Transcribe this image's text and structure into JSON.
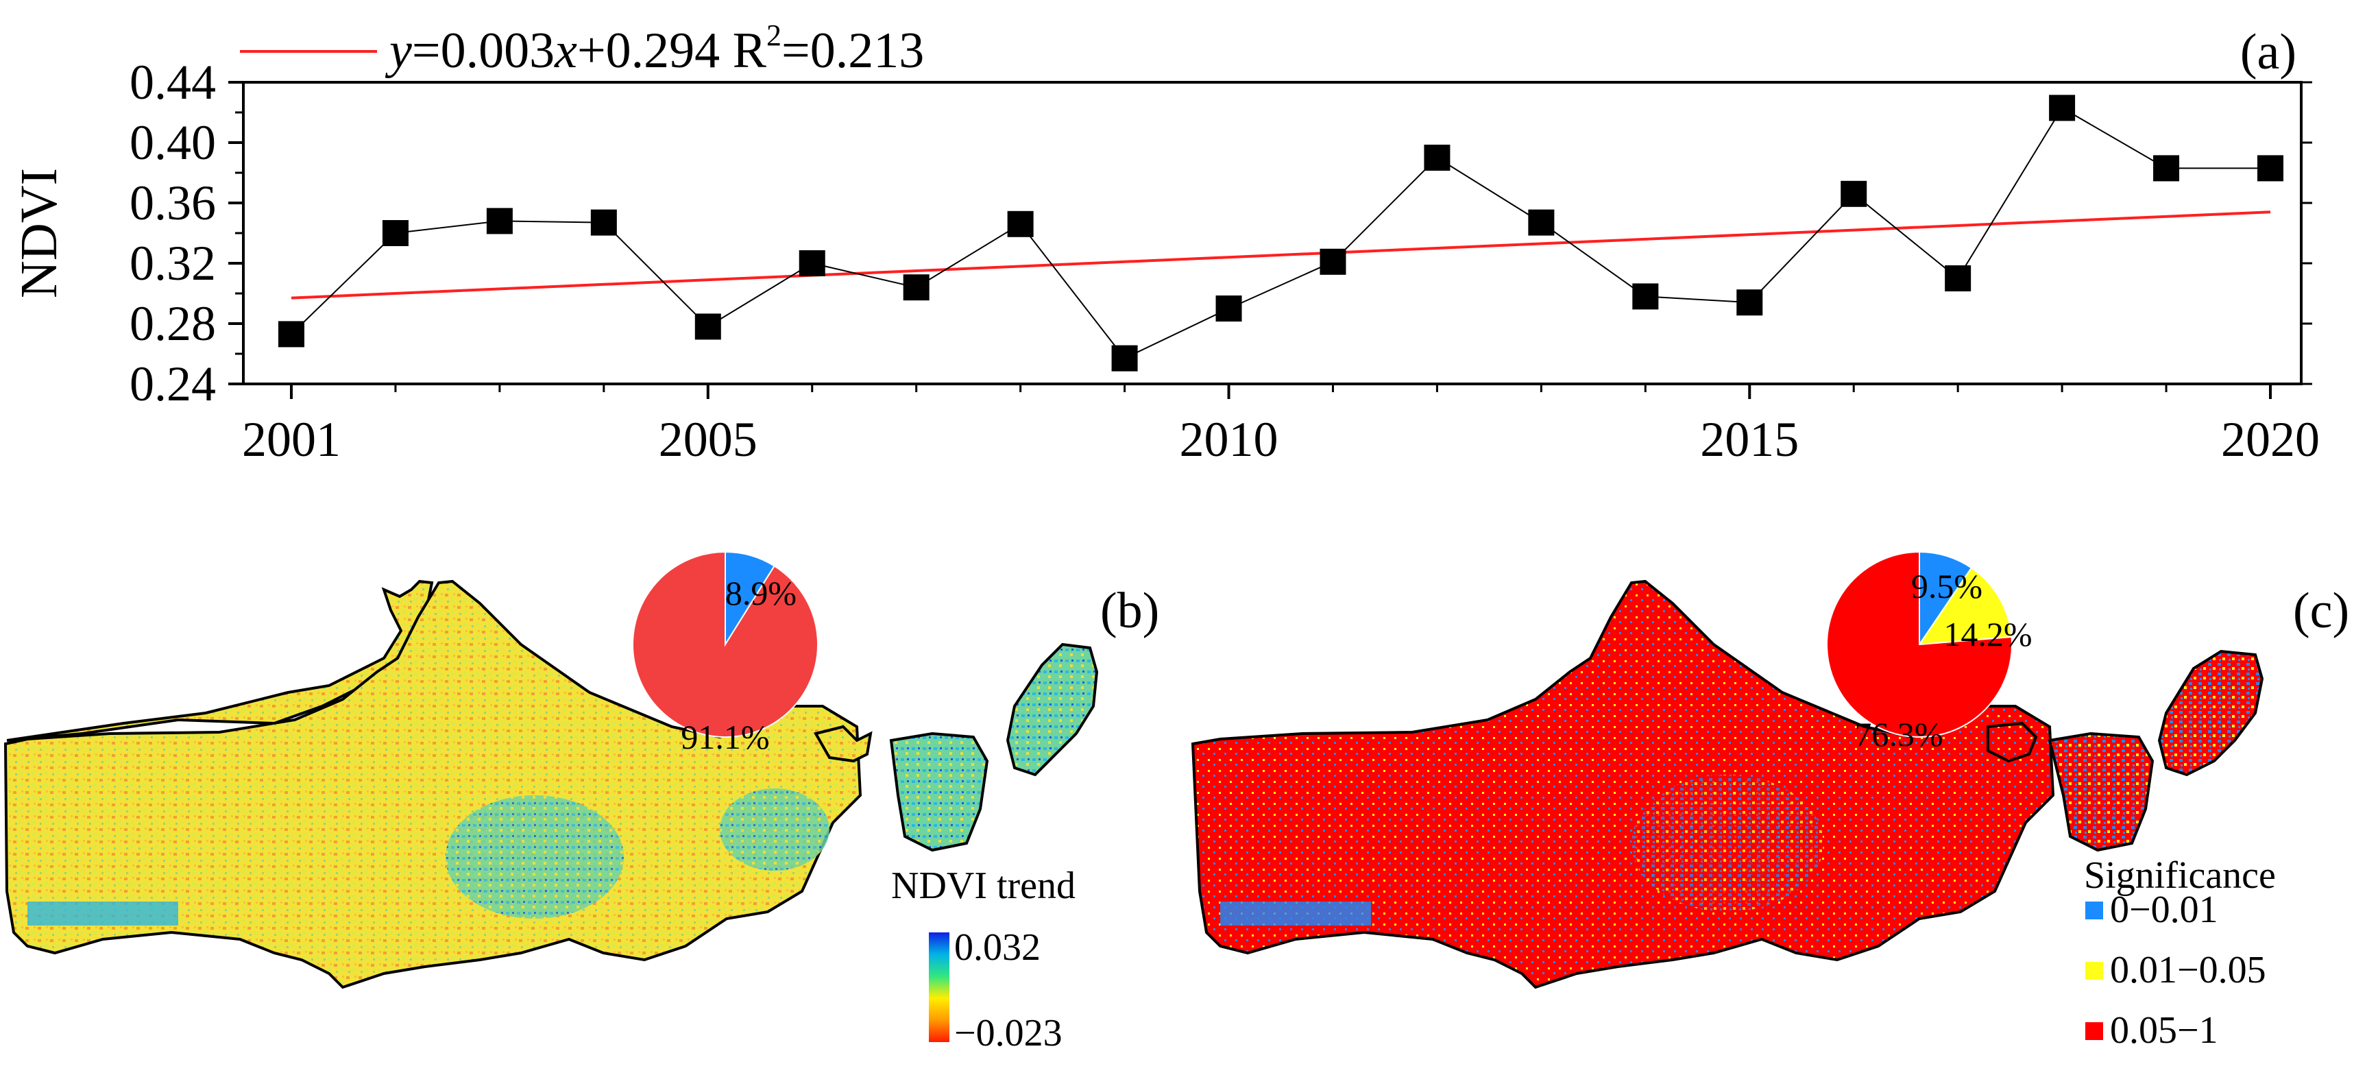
{
  "chart_data": [
    {
      "panel": "(a)",
      "type": "line",
      "ylabel": "NDVI",
      "xlabel": "",
      "x": [
        2001,
        2002,
        2003,
        2004,
        2005,
        2006,
        2007,
        2008,
        2009,
        2010,
        2011,
        2012,
        2013,
        2014,
        2015,
        2016,
        2017,
        2018,
        2019,
        2020
      ],
      "xticks": [
        "2001",
        "2005",
        "2010",
        "2015",
        "2020"
      ],
      "yticks": [
        "0.24",
        "0.28",
        "0.32",
        "0.36",
        "0.40",
        "0.44"
      ],
      "ylim": [
        0.24,
        0.44
      ],
      "xlim": [
        2001,
        2020
      ],
      "series": [
        {
          "name": "NDVI",
          "color": "#000000",
          "values": [
            0.273,
            0.34,
            0.348,
            0.347,
            0.278,
            0.32,
            0.304,
            0.346,
            0.257,
            0.29,
            0.321,
            0.39,
            0.347,
            0.298,
            0.294,
            0.366,
            0.31,
            0.423,
            0.383,
            0.383
          ]
        }
      ],
      "trend": {
        "slope": 0.003,
        "intercept": 0.294,
        "r2": 0.213,
        "color": "#ff2020"
      },
      "legend": {
        "y_sym": "y",
        "eq_a": "=0.003",
        "x_sym": "x",
        "eq_b": "+0.294 R",
        "sup": "2",
        "eq_c": "=0.213"
      }
    },
    {
      "panel": "(b)",
      "type": "pie",
      "slices": [
        {
          "label": "8.9%",
          "value": 8.9,
          "color": "#1a8cff"
        },
        {
          "label": "91.1%",
          "value": 91.1,
          "color": "#f24040"
        }
      ],
      "colorbar": {
        "title": "NDVI trend",
        "max": "0.032",
        "min": "−0.023"
      }
    },
    {
      "panel": "(c)",
      "type": "pie",
      "slices": [
        {
          "label": "9.5%",
          "value": 9.5,
          "color": "#1a8cff"
        },
        {
          "label": "14.2%",
          "value": 14.2,
          "color": "#ffff1a"
        },
        {
          "label": "76.3%",
          "value": 76.3,
          "color": "#ff0000"
        }
      ],
      "legend": {
        "title": "Significance",
        "items": [
          {
            "label": "0−0.01",
            "color": "#1a8cff"
          },
          {
            "label": "0.01−0.05",
            "color": "#ffff1a"
          },
          {
            "label": "0.05−1",
            "color": "#ff0000"
          }
        ]
      }
    }
  ]
}
